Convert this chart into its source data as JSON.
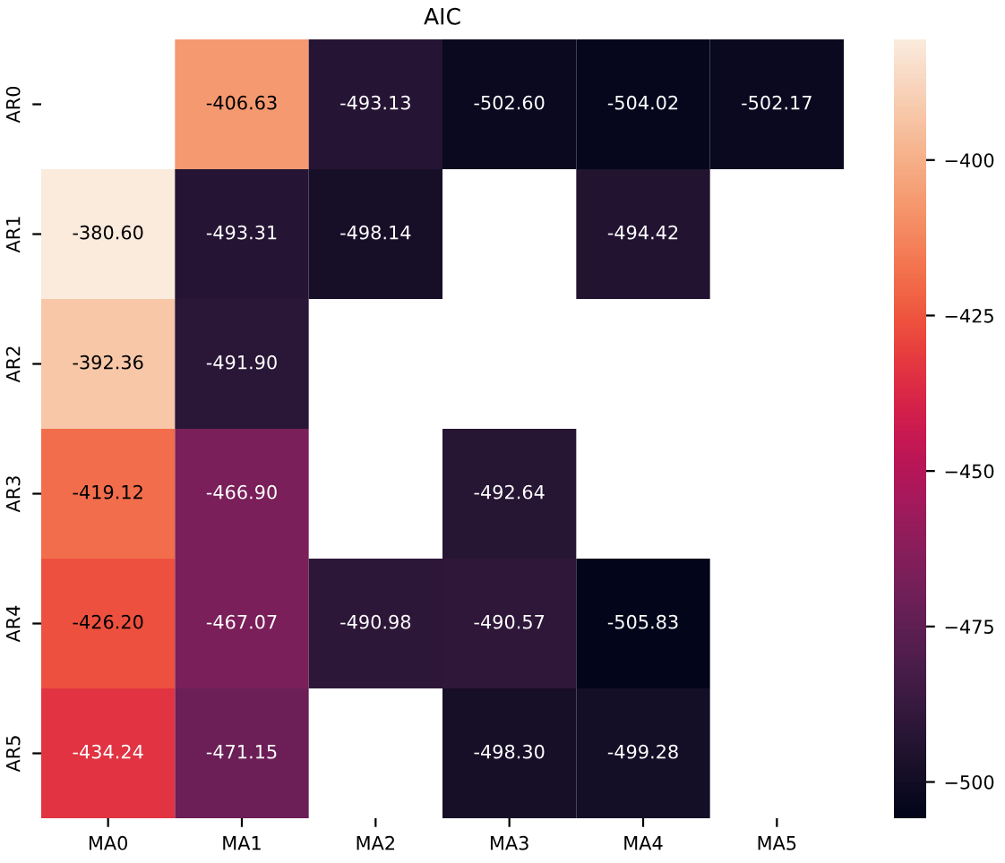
{
  "chart_data": {
    "type": "heatmap",
    "title": "AIC",
    "categories": [
      "MA0",
      "MA1",
      "MA2",
      "MA3",
      "MA4",
      "MA5"
    ],
    "y_categories": [
      "AR0",
      "AR1",
      "AR2",
      "AR3",
      "AR4",
      "AR5"
    ],
    "cells": [
      [
        null,
        -406.63,
        -493.13,
        -502.6,
        -504.02,
        -502.17
      ],
      [
        -380.6,
        -493.31,
        -498.14,
        null,
        -494.42,
        null
      ],
      [
        -392.36,
        -491.9,
        null,
        null,
        null,
        null
      ],
      [
        -419.12,
        -466.9,
        null,
        -492.64,
        null,
        null
      ],
      [
        -426.2,
        -467.07,
        -490.98,
        -490.57,
        -505.83,
        null
      ],
      [
        -434.24,
        -471.15,
        null,
        -498.3,
        -499.28,
        null
      ]
    ],
    "cell_labels": [
      [
        null,
        "-406.63",
        "-493.13",
        "-502.60",
        "-504.02",
        "-502.17"
      ],
      [
        "-380.60",
        "-493.31",
        "-498.14",
        null,
        "-494.42",
        null
      ],
      [
        "-392.36",
        "-491.90",
        null,
        null,
        null,
        null
      ],
      [
        "-419.12",
        "-466.90",
        null,
        "-492.64",
        null,
        null
      ],
      [
        "-426.20",
        "-467.07",
        "-490.98",
        "-490.57",
        "-505.83",
        null
      ],
      [
        "-434.24",
        "-471.15",
        null,
        "-498.30",
        "-499.28",
        null
      ]
    ],
    "clim": [
      -505.83,
      -380.6
    ],
    "cticks": [
      {
        "value": -400,
        "label": "−400"
      },
      {
        "value": -425,
        "label": "−425"
      },
      {
        "value": -450,
        "label": "−450"
      },
      {
        "value": -475,
        "label": "−475"
      },
      {
        "value": -500,
        "label": "−500"
      }
    ]
  }
}
